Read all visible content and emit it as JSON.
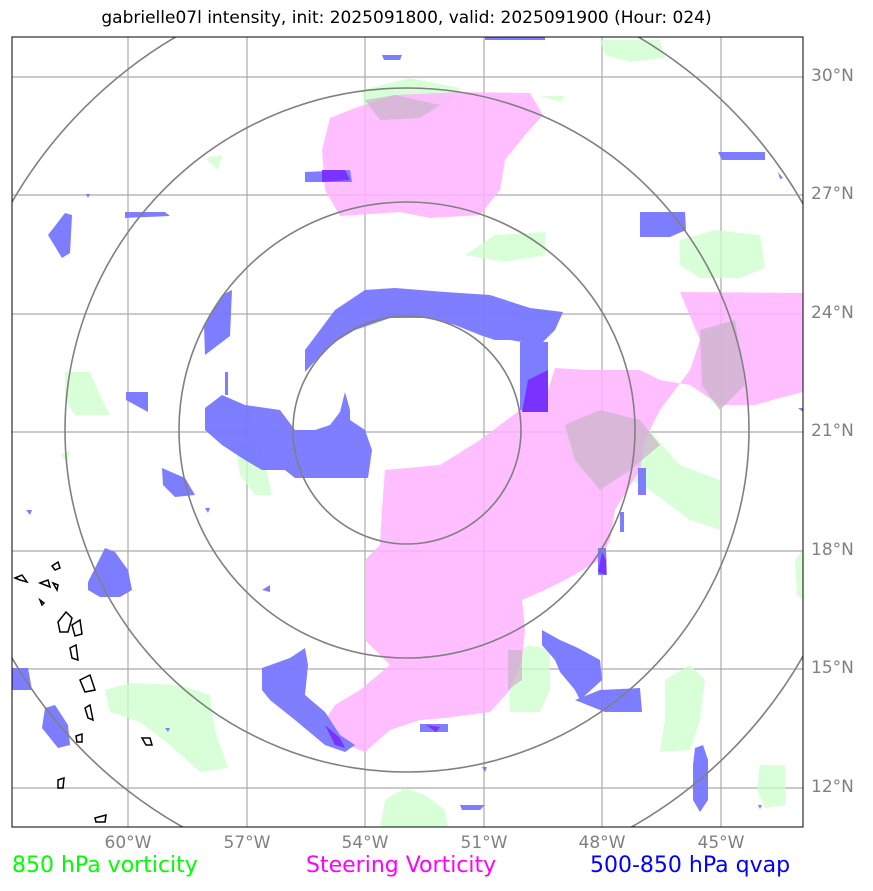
{
  "title": "gabrielle07l intensity, init: 2025091800, valid: 2025091900 (Hour: 024)",
  "lat_labels": [
    "30°N",
    "27°N",
    "24°N",
    "21°N",
    "18°N",
    "15°N",
    "12°N"
  ],
  "lon_labels": [
    "60°W",
    "57°W",
    "54°W",
    "51°W",
    "48°W",
    "45°W"
  ],
  "legend": [
    {
      "label": "850 hPa vorticity",
      "color": "#00ff00"
    },
    {
      "label": "Steering Vorticity",
      "color": "#ff00ff"
    },
    {
      "label": "500-850 hPa qvap",
      "color": "#0000ff"
    }
  ],
  "colors": {
    "vorticity_850": "#ccffcc",
    "steering_vorticity": "#ffb3ff",
    "qvap": "#7777ff",
    "qvap_dark": "#7a33ff",
    "grid": "#aaaaaa",
    "range_rings": "#808080",
    "coastline": "#000000"
  },
  "features": [
    "range-rings",
    "lat-lon-grid",
    "coastlines",
    "850-hPa-vorticity-shading",
    "steering-vorticity-shading",
    "qvap-shading"
  ]
}
